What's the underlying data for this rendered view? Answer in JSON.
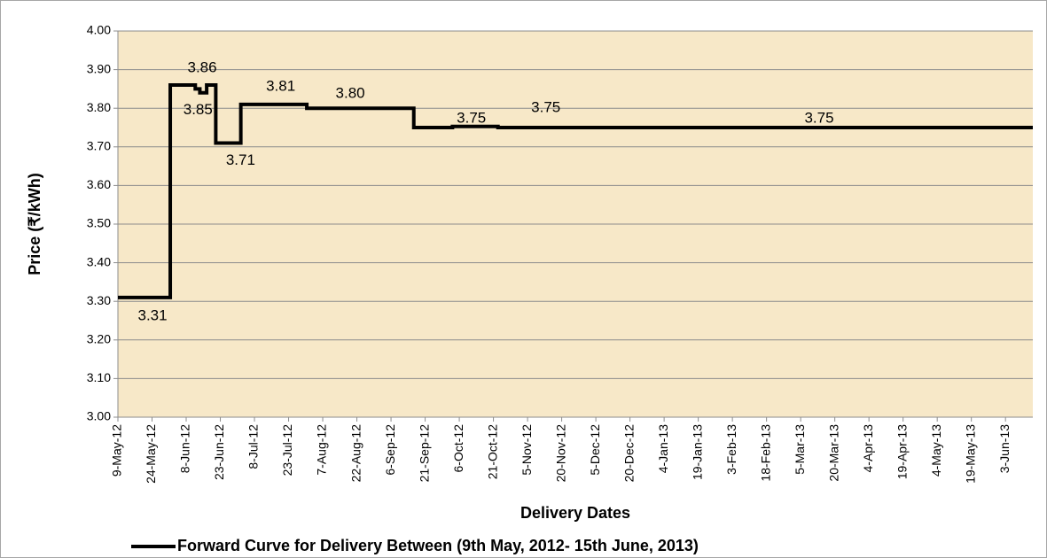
{
  "chart_data": {
    "type": "line",
    "x_label": "Delivery Dates",
    "y_label": "Price (₹/kWh)",
    "x": [
      "2012-05-09",
      "2012-06-01",
      "2012-06-01",
      "2012-06-12",
      "2012-06-12",
      "2012-06-14",
      "2012-06-14",
      "2012-06-17",
      "2012-06-17",
      "2012-06-21",
      "2012-06-21",
      "2012-07-02",
      "2012-07-02",
      "2012-07-31",
      "2012-07-31",
      "2012-09-16",
      "2012-09-16",
      "2012-10-03",
      "2012-10-03",
      "2012-10-23",
      "2012-10-23",
      "2013-06-15"
    ],
    "series": [
      {
        "name": "Forward Curve for Delivery Between (9th May, 2012- 15th  June, 2013)",
        "color": "#000000",
        "values": [
          3.31,
          3.31,
          3.86,
          3.86,
          3.85,
          3.85,
          3.84,
          3.84,
          3.86,
          3.86,
          3.71,
          3.71,
          3.81,
          3.81,
          3.8,
          3.8,
          3.75,
          3.75,
          3.753,
          3.753,
          3.75,
          3.75
        ],
        "value_labels": [
          null,
          "3.31",
          "3.86",
          null,
          "3.85",
          null,
          null,
          null,
          null,
          null,
          "3.71",
          null,
          "3.81",
          null,
          "3.80",
          null,
          "3.75",
          null,
          null,
          null,
          "3.75",
          "3.75"
        ]
      }
    ],
    "xlim": [
      "2012-05-09",
      "2013-06-15"
    ],
    "xticks": [
      {
        "value": "2012-05-09",
        "label": "9-May-12"
      },
      {
        "value": "2012-05-24",
        "label": "24-May-12"
      },
      {
        "value": "2012-06-08",
        "label": "8-Jun-12"
      },
      {
        "value": "2012-06-23",
        "label": "23-Jun-12"
      },
      {
        "value": "2012-07-08",
        "label": "8-Jul-12"
      },
      {
        "value": "2012-07-23",
        "label": "23-Jul-12"
      },
      {
        "value": "2012-08-07",
        "label": "7-Aug-12"
      },
      {
        "value": "2012-08-22",
        "label": "22-Aug-12"
      },
      {
        "value": "2012-09-06",
        "label": "6-Sep-12"
      },
      {
        "value": "2012-09-21",
        "label": "21-Sep-12"
      },
      {
        "value": "2012-10-06",
        "label": "6-Oct-12"
      },
      {
        "value": "2012-10-21",
        "label": "21-Oct-12"
      },
      {
        "value": "2012-11-05",
        "label": "5-Nov-12"
      },
      {
        "value": "2012-11-20",
        "label": "20-Nov-12"
      },
      {
        "value": "2012-12-05",
        "label": "5-Dec-12"
      },
      {
        "value": "2012-12-20",
        "label": "20-Dec-12"
      },
      {
        "value": "2013-01-04",
        "label": "4-Jan-13"
      },
      {
        "value": "2013-01-19",
        "label": "19-Jan-13"
      },
      {
        "value": "2013-02-03",
        "label": "3-Feb-13"
      },
      {
        "value": "2013-02-18",
        "label": "18-Feb-13"
      },
      {
        "value": "2013-03-05",
        "label": "5-Mar-13"
      },
      {
        "value": "2013-03-20",
        "label": "20-Mar-13"
      },
      {
        "value": "2013-04-04",
        "label": "4-Apr-13"
      },
      {
        "value": "2013-04-19",
        "label": "19-Apr-13"
      },
      {
        "value": "2013-05-04",
        "label": "4-May-13"
      },
      {
        "value": "2013-05-19",
        "label": "19-May-13"
      },
      {
        "value": "2013-06-03",
        "label": "3-Jun-13"
      }
    ],
    "ylim": [
      3.0,
      4.0
    ],
    "yticks": [
      {
        "value": 3.0,
        "label": "3.00"
      },
      {
        "value": 3.1,
        "label": "3.10"
      },
      {
        "value": 3.2,
        "label": "3.20"
      },
      {
        "value": 3.3,
        "label": "3.30"
      },
      {
        "value": 3.4,
        "label": "3.40"
      },
      {
        "value": 3.5,
        "label": "3.50"
      },
      {
        "value": 3.6,
        "label": "3.60"
      },
      {
        "value": 3.7,
        "label": "3.70"
      },
      {
        "value": 3.8,
        "label": "3.80"
      },
      {
        "value": 3.9,
        "label": "3.90"
      },
      {
        "value": 4.0,
        "label": "4.00"
      }
    ],
    "grid": true,
    "legend": "bottom"
  }
}
